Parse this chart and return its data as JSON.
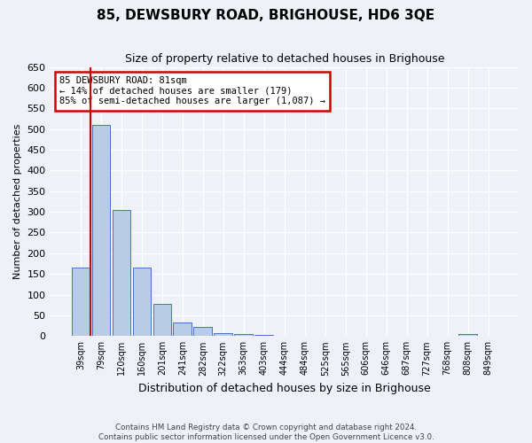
{
  "title": "85, DEWSBURY ROAD, BRIGHOUSE, HD6 3QE",
  "subtitle": "Size of property relative to detached houses in Brighouse",
  "xlabel": "Distribution of detached houses by size in Brighouse",
  "ylabel": "Number of detached properties",
  "categories": [
    "39sqm",
    "79sqm",
    "120sqm",
    "160sqm",
    "201sqm",
    "241sqm",
    "282sqm",
    "322sqm",
    "363sqm",
    "403sqm",
    "444sqm",
    "484sqm",
    "525sqm",
    "565sqm",
    "606sqm",
    "646sqm",
    "687sqm",
    "727sqm",
    "768sqm",
    "808sqm",
    "849sqm"
  ],
  "values": [
    165,
    510,
    305,
    165,
    78,
    33,
    22,
    7,
    5,
    2,
    1,
    1,
    1,
    0,
    0,
    0,
    0,
    0,
    0,
    5,
    0
  ],
  "bar_color": "#b8cce4",
  "bar_edge_color": "#4472c4",
  "annotation_title": "85 DEWSBURY ROAD: 81sqm",
  "annotation_line1": "← 14% of detached houses are smaller (179)",
  "annotation_line2": "85% of semi-detached houses are larger (1,087) →",
  "annotation_box_facecolor": "#ffffff",
  "annotation_box_edgecolor": "#cc0000",
  "vline_color": "#cc0000",
  "vline_x": 0.5,
  "ylim": [
    0,
    650
  ],
  "yticks": [
    0,
    50,
    100,
    150,
    200,
    250,
    300,
    350,
    400,
    450,
    500,
    550,
    600,
    650
  ],
  "footer1": "Contains HM Land Registry data © Crown copyright and database right 2024.",
  "footer2": "Contains public sector information licensed under the Open Government Licence v3.0.",
  "bg_color": "#eef2f8",
  "grid_color": "#ffffff"
}
